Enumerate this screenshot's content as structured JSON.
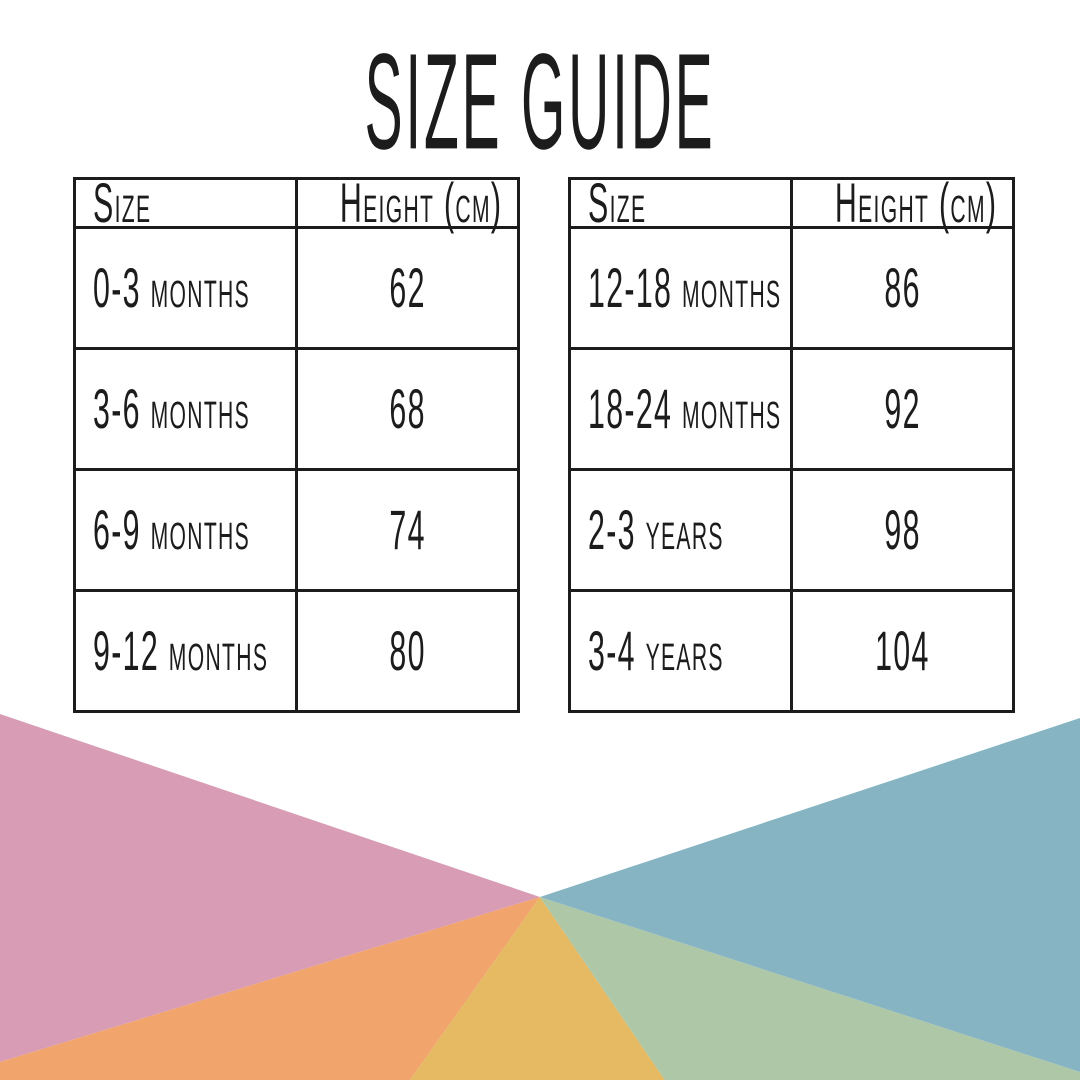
{
  "page": {
    "title": "SIZE GUIDE",
    "background": "#ffffff"
  },
  "tables": [
    {
      "name": "infant-sizes",
      "columns": [
        "Size",
        "Height (cm)"
      ],
      "rows": [
        [
          "0-3 months",
          "62"
        ],
        [
          "3-6 months",
          "68"
        ],
        [
          "6-9 months",
          "74"
        ],
        [
          "9-12 months",
          "80"
        ]
      ]
    },
    {
      "name": "toddler-sizes",
      "columns": [
        "Size",
        "Height (cm)"
      ],
      "rows": [
        [
          "12-18 months",
          "86"
        ],
        [
          "18-24 months",
          "92"
        ],
        [
          "2-3 years",
          "98"
        ],
        [
          "3-4 years",
          "104"
        ]
      ]
    }
  ],
  "colors": {
    "text": "#1c1c1c",
    "table_border": "#1c1c1c",
    "fan_pink": "#d99cb5",
    "fan_orange": "#f1a46c",
    "fan_gold": "#e6b963",
    "fan_green": "#aec7a6",
    "fan_blue": "#87b4c3"
  }
}
